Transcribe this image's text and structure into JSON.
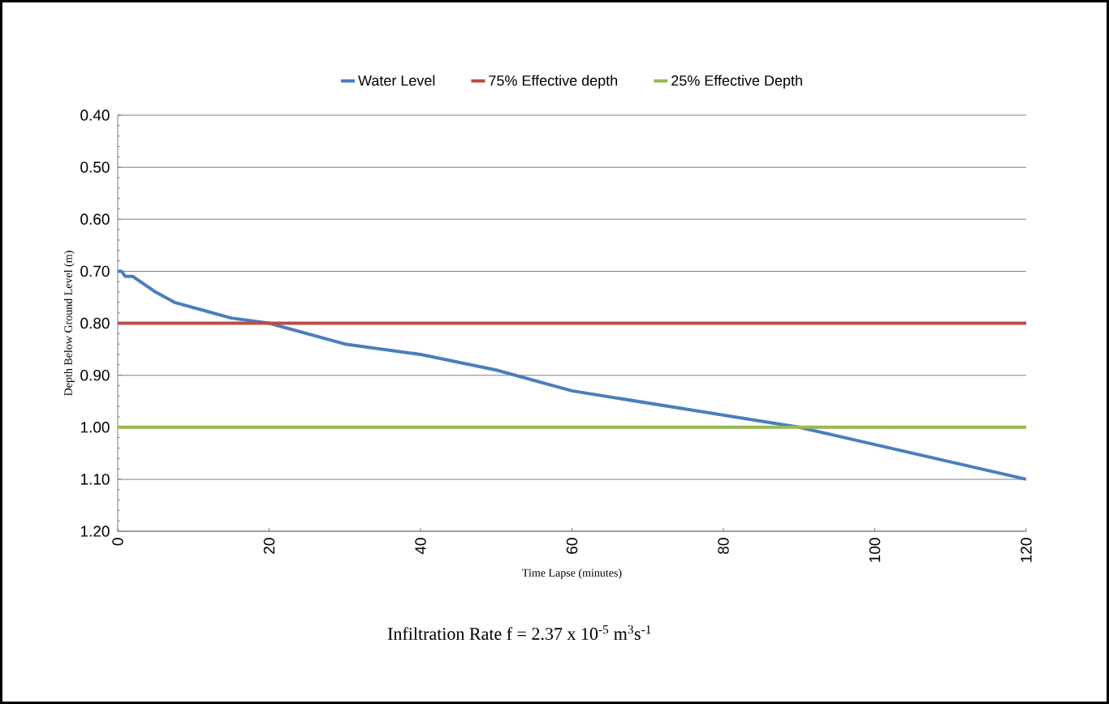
{
  "chart_data": {
    "type": "line",
    "xlabel": "Time Lapse (minutes)",
    "ylabel": "Depth Below Ground Level (m)",
    "x": [
      0,
      0.5,
      1,
      2,
      5,
      7.5,
      15,
      20,
      30,
      40,
      50,
      60,
      90,
      120
    ],
    "series": [
      {
        "name": "Water Level",
        "color": "#4a7ebb",
        "values": [
          0.7,
          0.7,
          0.71,
          0.71,
          0.74,
          0.76,
          0.79,
          0.8,
          0.84,
          0.86,
          0.89,
          0.93,
          1.0,
          1.1
        ]
      },
      {
        "name": "75% Effective depth",
        "color": "#be4b48",
        "values": [
          0.8,
          0.8,
          0.8,
          0.8,
          0.8,
          0.8,
          0.8,
          0.8,
          0.8,
          0.8,
          0.8,
          0.8,
          0.8,
          0.8
        ]
      },
      {
        "name": "25% Effective Depth",
        "color": "#98b954",
        "values": [
          1.0,
          1.0,
          1.0,
          1.0,
          1.0,
          1.0,
          1.0,
          1.0,
          1.0,
          1.0,
          1.0,
          1.0,
          1.0,
          1.0
        ]
      }
    ],
    "xlim": [
      0,
      120
    ],
    "xticks": [
      0,
      20,
      40,
      60,
      80,
      100,
      120
    ],
    "ylim": [
      1.2,
      0.4
    ],
    "yticks": [
      {
        "value": 0.4,
        "label": "0.40"
      },
      {
        "value": 0.5,
        "label": "0.50"
      },
      {
        "value": 0.6,
        "label": "0.60"
      },
      {
        "value": 0.7,
        "label": "0.70"
      },
      {
        "value": 0.8,
        "label": "0.80"
      },
      {
        "value": 0.9,
        "label": "0.90"
      },
      {
        "value": 1.0,
        "label": "1.00"
      },
      {
        "value": 1.1,
        "label": "1.10"
      },
      {
        "value": 1.2,
        "label": "1.20"
      }
    ],
    "grid": "y",
    "legend": "top",
    "line_style": "solid",
    "marker": "none",
    "annotations": [
      "Infiltration Rate f =   2.37 x 10$^{-5}$ m$^{3}$s$^{-1}$"
    ]
  }
}
